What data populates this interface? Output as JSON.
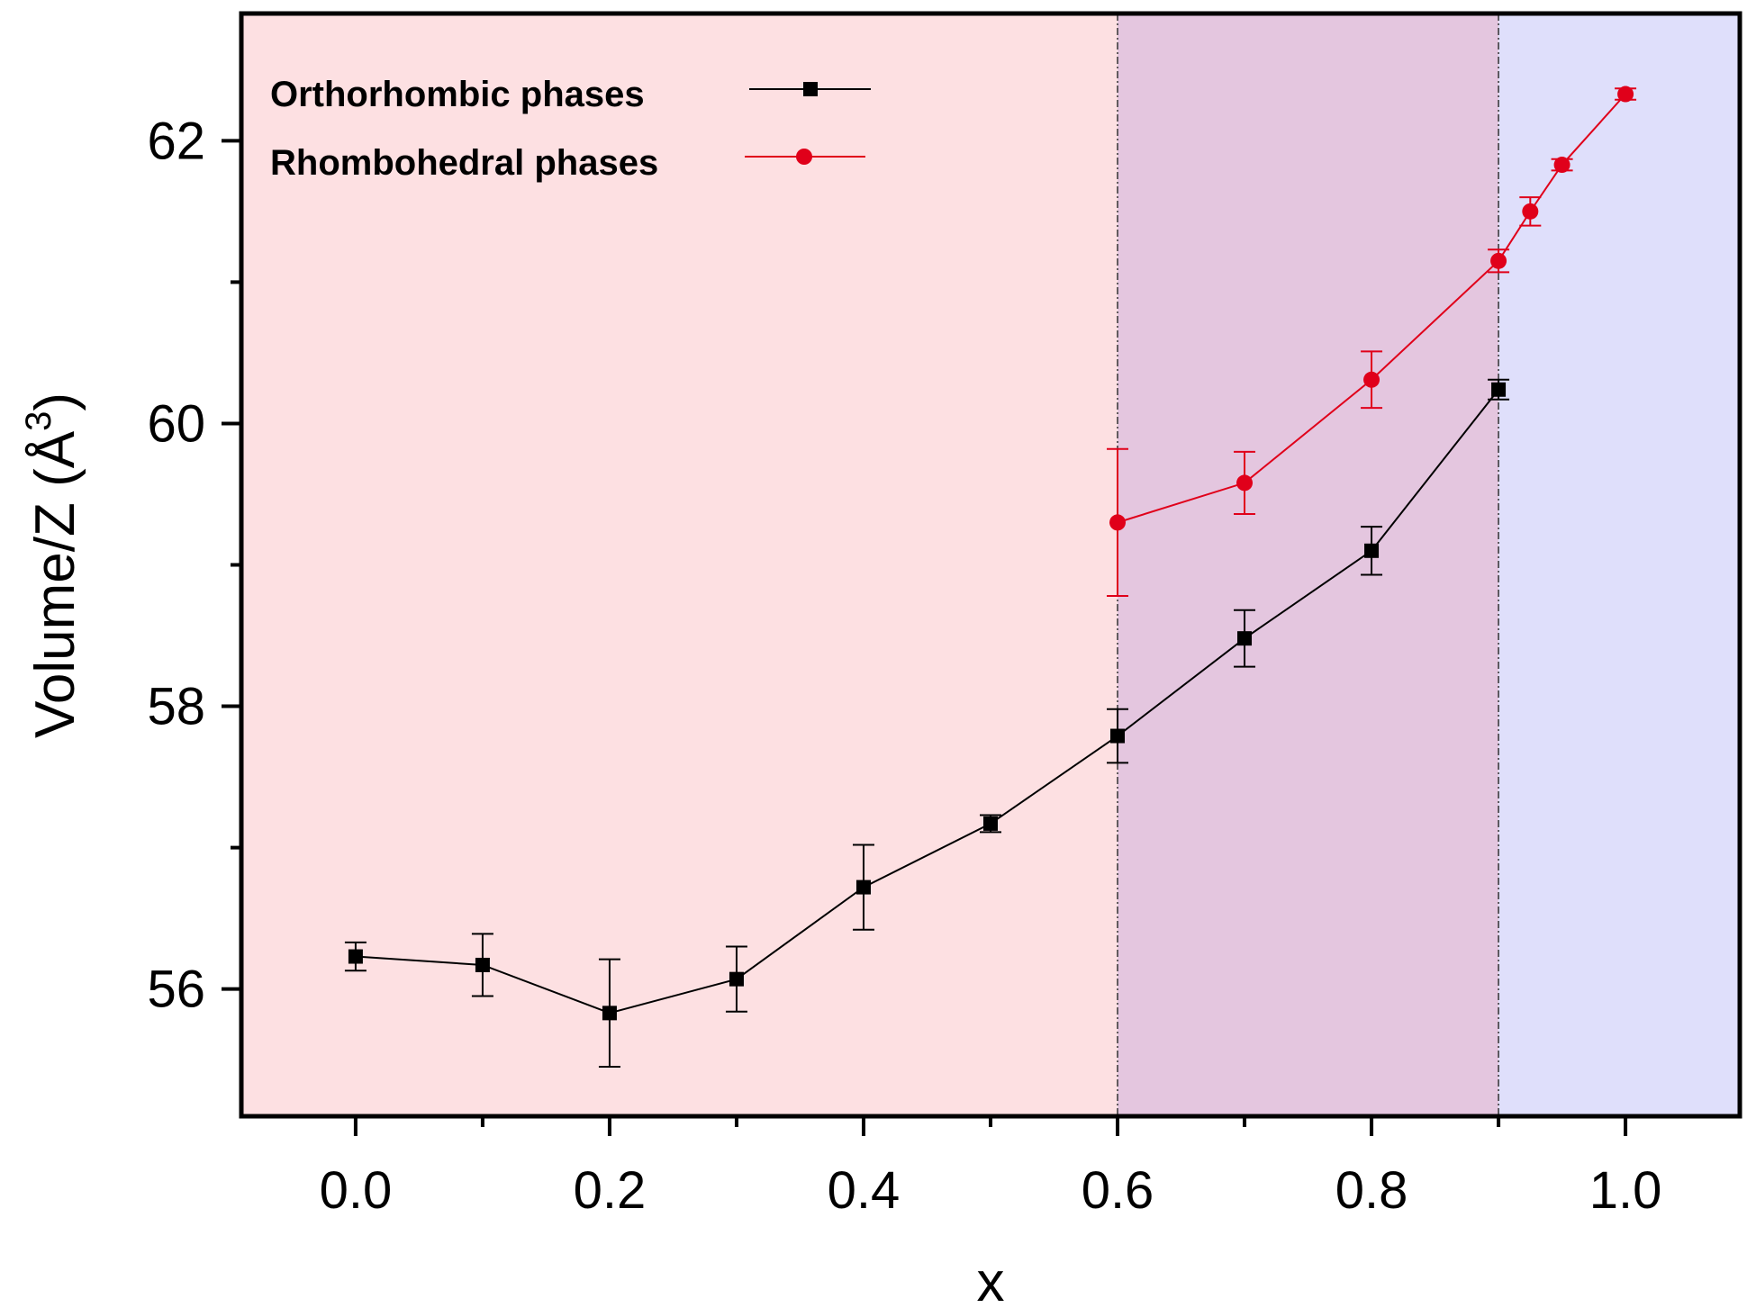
{
  "chart_data": {
    "type": "line",
    "title": "",
    "xlabel": "x",
    "ylabel_main": "Volume/Z (Å",
    "ylabel_sup": "3",
    "ylabel_close": ")",
    "xlim": [
      -0.09,
      1.09
    ],
    "ylim": [
      55.1,
      62.9
    ],
    "xticks": [
      0.0,
      0.2,
      0.4,
      0.6,
      0.8,
      1.0
    ],
    "xtick_labels": [
      "0.0",
      "0.2",
      "0.4",
      "0.6",
      "0.8",
      "1.0"
    ],
    "xminor": [
      0.1,
      0.3,
      0.5,
      0.7,
      0.9
    ],
    "yticks": [
      56,
      58,
      60,
      62
    ],
    "ytick_labels": [
      "56",
      "58",
      "60",
      "62"
    ],
    "yminor": [
      57,
      59,
      61
    ],
    "regions": [
      {
        "name": "orthorhombic-region",
        "x0": -0.09,
        "x1": 0.6,
        "color": "#fde0e2"
      },
      {
        "name": "mixed-region",
        "x0": 0.6,
        "x1": 0.9,
        "color": "#e4c6df"
      },
      {
        "name": "rhombohedral-region",
        "x0": 0.9,
        "x1": 1.09,
        "color": "#dfdffb"
      }
    ],
    "boundaries": [
      0.6,
      0.9
    ],
    "legend_position": "top-left",
    "series": [
      {
        "name": "Orthorhombic phases",
        "color": "#000000",
        "marker": "square",
        "x": [
          0.0,
          0.1,
          0.2,
          0.3,
          0.4,
          0.5,
          0.6,
          0.7,
          0.8,
          0.9
        ],
        "y": [
          56.23,
          56.17,
          55.83,
          56.07,
          56.72,
          57.17,
          57.79,
          58.48,
          59.1,
          60.24
        ],
        "err": [
          0.1,
          0.22,
          0.38,
          0.23,
          0.3,
          0.06,
          0.19,
          0.2,
          0.17,
          0.07
        ]
      },
      {
        "name": "Rhombohedral phases",
        "color": "#e0001a",
        "marker": "circle",
        "x": [
          0.6,
          0.7,
          0.8,
          0.9,
          0.925,
          0.95,
          1.0
        ],
        "y": [
          59.3,
          59.58,
          60.31,
          61.15,
          61.5,
          61.83,
          62.33
        ],
        "err": [
          0.52,
          0.22,
          0.2,
          0.08,
          0.1,
          0.04,
          0.04
        ]
      }
    ]
  }
}
